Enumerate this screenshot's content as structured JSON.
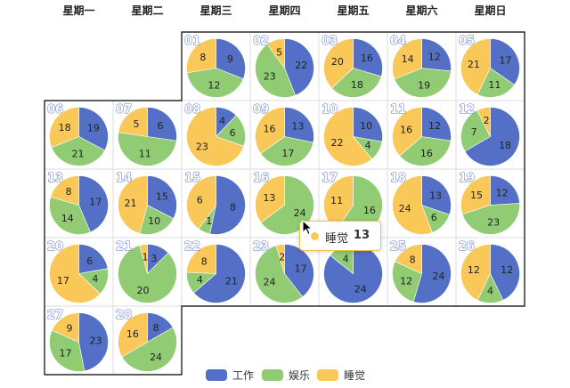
{
  "chart_data": {
    "type": "pie",
    "layout": "calendar",
    "weekdays": [
      "星期一",
      "星期二",
      "星期三",
      "星期四",
      "星期五",
      "星期六",
      "星期日"
    ],
    "series_names": [
      "工作",
      "娱乐",
      "睡觉"
    ],
    "colors": [
      "#5470c6",
      "#91cc75",
      "#fac858"
    ],
    "days": [
      {
        "date": "01",
        "values": [
          9,
          12,
          8
        ]
      },
      {
        "date": "02",
        "values": [
          22,
          23,
          5
        ]
      },
      {
        "date": "03",
        "values": [
          16,
          18,
          20
        ]
      },
      {
        "date": "04",
        "values": [
          12,
          19,
          14
        ]
      },
      {
        "date": "05",
        "values": [
          17,
          11,
          21
        ]
      },
      {
        "date": "06",
        "values": [
          19,
          21,
          18
        ]
      },
      {
        "date": "07",
        "values": [
          6,
          11,
          5
        ]
      },
      {
        "date": "08",
        "values": [
          4,
          6,
          23
        ]
      },
      {
        "date": "09",
        "values": [
          13,
          17,
          16
        ]
      },
      {
        "date": "10",
        "values": [
          10,
          4,
          22
        ]
      },
      {
        "date": "11",
        "values": [
          12,
          16,
          16
        ]
      },
      {
        "date": "12",
        "values": [
          18,
          7,
          2
        ]
      },
      {
        "date": "13",
        "values": [
          17,
          14,
          8
        ]
      },
      {
        "date": "14",
        "values": [
          15,
          10,
          21
        ]
      },
      {
        "date": "15",
        "values": [
          8,
          1,
          6
        ]
      },
      {
        "date": "16",
        "values": [
          0,
          24,
          13
        ]
      },
      {
        "date": "17",
        "values": [
          0,
          16,
          11
        ]
      },
      {
        "date": "18",
        "values": [
          13,
          6,
          24
        ]
      },
      {
        "date": "19",
        "values": [
          12,
          23,
          15
        ]
      },
      {
        "date": "20",
        "values": [
          6,
          4,
          17
        ]
      },
      {
        "date": "21",
        "values": [
          3,
          20,
          1
        ]
      },
      {
        "date": "22",
        "values": [
          21,
          4,
          8
        ]
      },
      {
        "date": "23",
        "values": [
          17,
          24,
          2
        ]
      },
      {
        "date": "24",
        "values": [
          24,
          4,
          0
        ]
      },
      {
        "date": "25",
        "values": [
          24,
          12,
          8
        ]
      },
      {
        "date": "26",
        "values": [
          12,
          4,
          12
        ]
      },
      {
        "date": "27",
        "values": [
          23,
          17,
          9
        ]
      },
      {
        "date": "28",
        "values": [
          8,
          24,
          16
        ]
      }
    ]
  },
  "tooltip": {
    "series": "睡觉",
    "value": "13"
  },
  "legend": [
    {
      "label": "工作",
      "color": "#5470c6"
    },
    {
      "label": "娱乐",
      "color": "#91cc75"
    },
    {
      "label": "睡觉",
      "color": "#fac858"
    }
  ]
}
